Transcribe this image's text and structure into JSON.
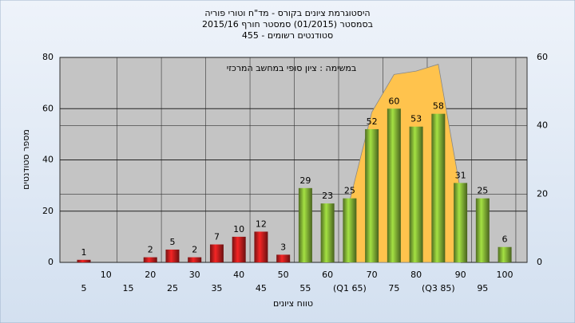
{
  "chart_data": {
    "type": "bar",
    "title_lines": [
      "היסטוגרמת ציונים בקורס - מד\"ח וטורי פוריה",
      "בסמסטר  (01/2015)  סמסטר חורף 2015/16",
      "סטודנטים רשומים - 455"
    ],
    "annotation": "במשימה : ציון סופי במחשב המרכזי",
    "ylabel": "מספר סטודנטים",
    "xlabel": "טווח ציונים",
    "categories": [
      "5",
      "10",
      "15",
      "20",
      "25",
      "30",
      "35",
      "40",
      "45",
      "50",
      "55",
      "60",
      "(Q1 65)",
      "70",
      "75",
      "80",
      "(Q3 85)",
      "90",
      "95",
      "100"
    ],
    "values": [
      1,
      null,
      null,
      2,
      5,
      2,
      7,
      10,
      12,
      3,
      29,
      23,
      25,
      52,
      60,
      53,
      58,
      31,
      25,
      6
    ],
    "colors": [
      "#d42020",
      "#d42020",
      "#d42020",
      "#d42020",
      "#d42020",
      "#d42020",
      "#d42020",
      "#d42020",
      "#d42020",
      "#d42020",
      "#8fc43a",
      "#8fc43a",
      "#8fc43a",
      "#8fc43a",
      "#8fc43a",
      "#8fc43a",
      "#8fc43a",
      "#8fc43a",
      "#8fc43a",
      "#8fc43a"
    ],
    "ylim": [
      0,
      80
    ],
    "yticks": [
      0,
      20,
      40,
      60,
      80
    ],
    "y2lim": [
      0,
      60
    ],
    "y2ticks": [
      0,
      20,
      40,
      60
    ],
    "area": {
      "axis": "y2",
      "color": "#ffc34d",
      "x": [
        65,
        70,
        75,
        80,
        85,
        90
      ],
      "values": [
        18,
        44,
        55,
        56,
        58,
        21
      ]
    },
    "grid": true
  }
}
